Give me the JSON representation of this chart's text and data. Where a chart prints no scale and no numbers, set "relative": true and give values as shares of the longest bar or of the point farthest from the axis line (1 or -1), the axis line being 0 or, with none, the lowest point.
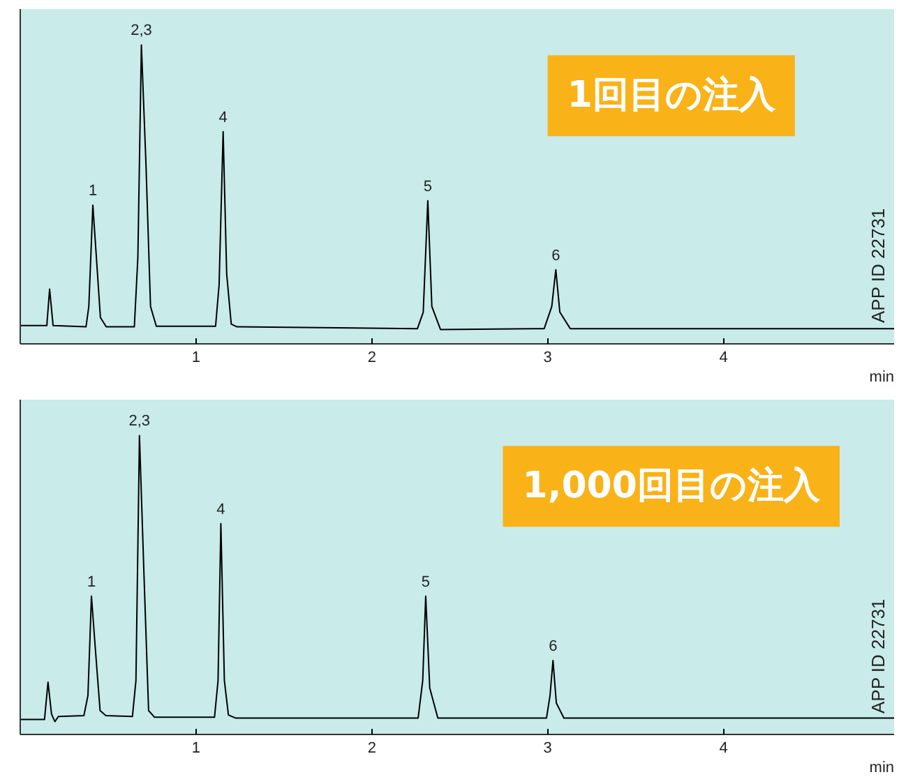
{
  "chart_data": [
    {
      "type": "line",
      "relative": true,
      "xlabel": "min",
      "xlim": [
        0,
        4.97
      ],
      "xticks": [
        1,
        2,
        3,
        4
      ],
      "tick_labels": "x",
      "grid": false,
      "marker": "none",
      "line_style": "solid",
      "series": [
        {
          "color": "#000000",
          "x": [
            0,
            0.151,
            0.167,
            0.187,
            0.374,
            0.39,
            0.413,
            0.433,
            0.456,
            0.489,
            0.649,
            0.669,
            0.689,
            0.715,
            0.741,
            0.774,
            1.111,
            1.131,
            1.154,
            1.174,
            1.2,
            1.233,
            2.259,
            2.292,
            2.318,
            2.341,
            2.39,
            2.98,
            3.023,
            3.046,
            3.069,
            3.128,
            4.97
          ],
          "values": [
            0.061,
            0.061,
            0.183,
            0.061,
            0.057,
            0.125,
            0.464,
            0.29,
            0.088,
            0.057,
            0.057,
            0.29,
            1.0,
            0.602,
            0.125,
            0.059,
            0.059,
            0.198,
            0.71,
            0.235,
            0.066,
            0.057,
            0.051,
            0.106,
            0.479,
            0.125,
            0.048,
            0.051,
            0.125,
            0.248,
            0.106,
            0.051,
            0.051
          ]
        }
      ],
      "annotations": [
        "1回目の注入",
        "APP ID 22731",
        {
          "text": "1",
          "x": 0.413,
          "y": 0.464
        },
        {
          "text": "2,3",
          "x": 0.689,
          "y": 1.0
        },
        {
          "text": "4",
          "x": 1.154,
          "y": 0.71
        },
        {
          "text": "5",
          "x": 2.318,
          "y": 0.479
        },
        {
          "text": "6",
          "x": 3.046,
          "y": 0.248
        }
      ]
    },
    {
      "type": "line",
      "relative": true,
      "xlabel": "min",
      "xlim": [
        0,
        4.97
      ],
      "xticks": [
        1,
        2,
        3,
        4
      ],
      "tick_labels": "x",
      "grid": false,
      "marker": "none",
      "line_style": "solid",
      "series": [
        {
          "color": "#000000",
          "x": [
            0,
            0.138,
            0.158,
            0.178,
            0.197,
            0.217,
            0.362,
            0.385,
            0.405,
            0.428,
            0.454,
            0.487,
            0.638,
            0.658,
            0.678,
            0.704,
            0.73,
            0.763,
            1.105,
            1.125,
            1.141,
            1.161,
            1.184,
            1.224,
            2.263,
            2.289,
            2.306,
            2.329,
            2.375,
            2.993,
            3.013,
            3.03,
            3.049,
            3.092,
            4.97
          ],
          "values": [
            0.05,
            0.05,
            0.175,
            0.068,
            0.043,
            0.06,
            0.063,
            0.13,
            0.4625,
            0.28,
            0.08,
            0.063,
            0.06,
            0.18,
            1.0,
            0.53,
            0.08,
            0.058,
            0.058,
            0.18,
            0.705,
            0.18,
            0.065,
            0.055,
            0.055,
            0.18,
            0.4625,
            0.155,
            0.055,
            0.055,
            0.13,
            0.2475,
            0.105,
            0.055,
            0.055
          ]
        }
      ],
      "annotations": [
        "1,000回目の注入",
        "APP ID 22731",
        {
          "text": "1",
          "x": 0.405,
          "y": 0.4625
        },
        {
          "text": "2,3",
          "x": 0.678,
          "y": 1.0
        },
        {
          "text": "4",
          "x": 1.141,
          "y": 0.705
        },
        {
          "text": "5",
          "x": 2.306,
          "y": 0.4625
        },
        {
          "text": "6",
          "x": 3.03,
          "y": 0.2475
        }
      ]
    }
  ]
}
